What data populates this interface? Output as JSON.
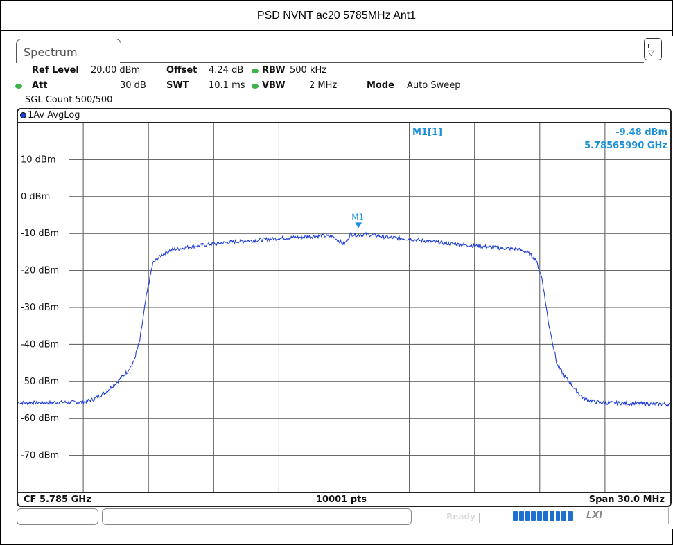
{
  "page_title": "PSD NVNT ac20 5785MHz Ant1",
  "tab_label": "Spectrum",
  "params": {
    "ref_level_label": "Ref Level",
    "ref_level_value": "20.00 dBm",
    "offset_label": "Offset",
    "offset_value": "4.24 dB",
    "rbw_label": "RBW",
    "rbw_value": "500 kHz",
    "att_label": "Att",
    "att_value": "30 dB",
    "swt_label": "SWT",
    "swt_value": "10.1 ms",
    "vbw_label": "VBW",
    "vbw_value": "2 MHz",
    "mode_label": "Mode",
    "mode_value": "Auto Sweep",
    "sgl_count": "SGL Count 500/500"
  },
  "trace_label": "1Av AvgLog",
  "marker": {
    "name": "M1[1]",
    "level": "-9.48 dBm",
    "freq": "5.78565990 GHz",
    "tag": "M1"
  },
  "footer": {
    "cf": "CF 5.785 GHz",
    "pts": "10001 pts",
    "span": "Span 30.0 MHz"
  },
  "status": {
    "ready": "Ready",
    "lxi": "LXI"
  },
  "colors": {
    "trace": "#1f3fd6",
    "marker": "#1a8fd8",
    "led": "#3db34a"
  },
  "chart_data": {
    "type": "line",
    "title": "",
    "xlabel": "",
    "ylabel": "",
    "x_unit": "MHz",
    "xlim": [
      5770.0,
      5800.0
    ],
    "ylim": [
      -80,
      20
    ],
    "ytick_labels": [
      "10 dBm",
      "0 dBm",
      "-10 dBm",
      "-20 dBm",
      "-30 dBm",
      "-40 dBm",
      "-50 dBm",
      "-60 dBm",
      "-70 dBm"
    ],
    "ytick_values": [
      10,
      0,
      -10,
      -20,
      -30,
      -40,
      -50,
      -60,
      -70
    ],
    "grid": true,
    "series": [
      {
        "x": [
          5770.0,
          5773.0,
          5773.5,
          5774.0,
          5774.5,
          5775.0,
          5775.3,
          5775.6,
          5775.9,
          5776.2,
          5776.6,
          5777.0,
          5778.0,
          5779.0,
          5780.0,
          5781.0,
          5782.0,
          5783.0,
          5784.0,
          5784.5,
          5785.0,
          5785.3,
          5785.6,
          5786.0,
          5787.0,
          5788.0,
          5789.0,
          5790.0,
          5791.0,
          5792.0,
          5793.0,
          5793.4,
          5793.8,
          5794.1,
          5794.4,
          5794.8,
          5795.2,
          5795.6,
          5796.0,
          5796.5,
          5797.0,
          5800.0
        ],
        "y": [
          -55.8,
          -55.6,
          -54.8,
          -53.0,
          -50.5,
          -47.5,
          -45.0,
          -39.0,
          -27.0,
          -18.0,
          -15.8,
          -14.5,
          -13.5,
          -12.8,
          -12.2,
          -11.8,
          -11.3,
          -11.0,
          -10.6,
          -10.9,
          -13.0,
          -10.2,
          -10.4,
          -10.2,
          -11.0,
          -11.5,
          -12.2,
          -12.8,
          -13.3,
          -13.8,
          -14.3,
          -15.0,
          -16.8,
          -22.0,
          -34.0,
          -45.5,
          -49.0,
          -52.0,
          -54.5,
          -55.5,
          -55.8,
          -56.2
        ]
      }
    ],
    "marker": {
      "x": 5785.6599,
      "y": -9.48
    }
  }
}
